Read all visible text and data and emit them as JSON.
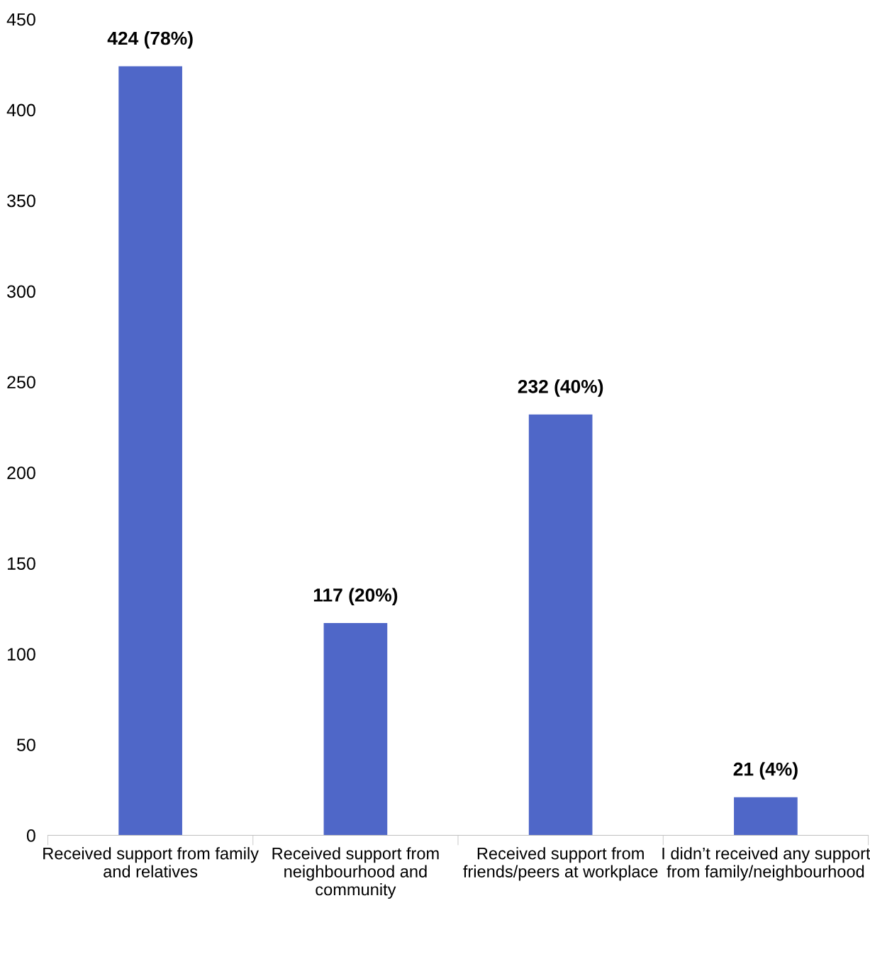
{
  "chart_data": {
    "type": "bar",
    "categories": [
      "Received support from family\nand relatives",
      "Received support from\nneighbourhood and\ncommunity",
      "Received support from\nfriends/peers at workplace",
      "I didn’t received any support\nfrom family/neighbourhood"
    ],
    "values": [
      424,
      117,
      232,
      21
    ],
    "value_labels": [
      "424 (78%)",
      "117 (20%)",
      "232 (40%)",
      "21 (4%)"
    ],
    "color": "#4f67c8",
    "ylim": [
      0,
      450
    ],
    "yticks": [
      0,
      50,
      100,
      150,
      200,
      250,
      300,
      350,
      400,
      450
    ],
    "grid": false,
    "legend": false
  }
}
